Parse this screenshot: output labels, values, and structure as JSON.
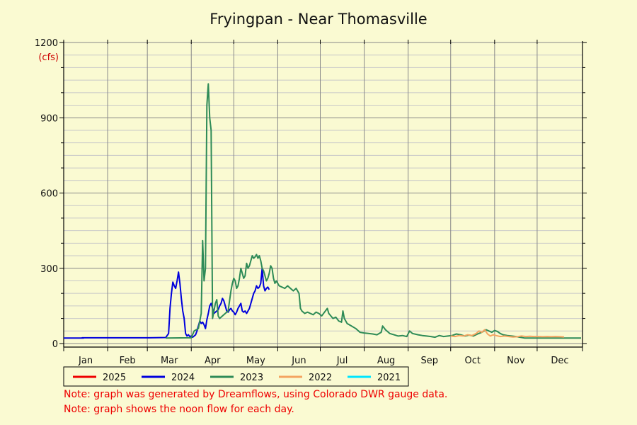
{
  "chart_data": {
    "type": "line",
    "title": "Fryingpan - Near Thomasville",
    "ylabel": "(cfs)",
    "xlabel": "",
    "ylim": [
      0,
      1200
    ],
    "y_ticks": [
      0,
      300,
      600,
      900,
      1200
    ],
    "x_unit": "day of year",
    "xlim": [
      0,
      366
    ],
    "months": [
      {
        "label": "Jan",
        "start": 0
      },
      {
        "label": "Feb",
        "start": 31
      },
      {
        "label": "Mar",
        "start": 59
      },
      {
        "label": "Apr",
        "start": 90
      },
      {
        "label": "May",
        "start": 120
      },
      {
        "label": "Jun",
        "start": 151
      },
      {
        "label": "Jul",
        "start": 181
      },
      {
        "label": "Aug",
        "start": 212
      },
      {
        "label": "Sep",
        "start": 243
      },
      {
        "label": "Oct",
        "start": 273
      },
      {
        "label": "Nov",
        "start": 304
      },
      {
        "label": "Dec",
        "start": 334
      }
    ],
    "grid": true,
    "legend_position": "bottom",
    "series": [
      {
        "name": "2025",
        "color": "#ee0000",
        "points": []
      },
      {
        "name": "2024",
        "color": "#0000dd",
        "points": [
          [
            0,
            22
          ],
          [
            14,
            22
          ],
          [
            13,
            23
          ],
          [
            30,
            23
          ],
          [
            45,
            23
          ],
          [
            60,
            23
          ],
          [
            72,
            24
          ],
          [
            74,
            40
          ],
          [
            75,
            140
          ],
          [
            76,
            200
          ],
          [
            77,
            245
          ],
          [
            78,
            230
          ],
          [
            79,
            220
          ],
          [
            80,
            250
          ],
          [
            81,
            285
          ],
          [
            82,
            240
          ],
          [
            83,
            180
          ],
          [
            84,
            130
          ],
          [
            85,
            100
          ],
          [
            86,
            40
          ],
          [
            87,
            30
          ],
          [
            88,
            35
          ],
          [
            89,
            28
          ],
          [
            90,
            30
          ],
          [
            91,
            25
          ],
          [
            92,
            30
          ],
          [
            93,
            35
          ],
          [
            94,
            50
          ],
          [
            95,
            70
          ],
          [
            96,
            90
          ],
          [
            97,
            80
          ],
          [
            98,
            85
          ],
          [
            99,
            75
          ],
          [
            100,
            60
          ],
          [
            101,
            95
          ],
          [
            102,
            120
          ],
          [
            103,
            150
          ],
          [
            104,
            160
          ],
          [
            105,
            140
          ],
          [
            106,
            120
          ],
          [
            107,
            125
          ],
          [
            108,
            130
          ],
          [
            109,
            135
          ],
          [
            110,
            150
          ],
          [
            111,
            160
          ],
          [
            112,
            180
          ],
          [
            113,
            170
          ],
          [
            114,
            150
          ],
          [
            115,
            130
          ],
          [
            116,
            125
          ],
          [
            117,
            135
          ],
          [
            118,
            140
          ],
          [
            119,
            130
          ],
          [
            120,
            125
          ],
          [
            121,
            115
          ],
          [
            122,
            125
          ],
          [
            123,
            140
          ],
          [
            124,
            150
          ],
          [
            125,
            160
          ],
          [
            126,
            130
          ],
          [
            127,
            125
          ],
          [
            128,
            130
          ],
          [
            129,
            120
          ],
          [
            130,
            130
          ],
          [
            131,
            140
          ],
          [
            132,
            160
          ],
          [
            133,
            180
          ],
          [
            134,
            200
          ],
          [
            135,
            210
          ],
          [
            136,
            230
          ],
          [
            137,
            220
          ],
          [
            138,
            225
          ],
          [
            139,
            240
          ],
          [
            140,
            300
          ],
          [
            141,
            230
          ],
          [
            142,
            210
          ],
          [
            143,
            220
          ],
          [
            144,
            225
          ],
          [
            145,
            215
          ]
        ]
      },
      {
        "name": "2023",
        "color": "#2e8b57",
        "points": [
          [
            72,
            22
          ],
          [
            90,
            23
          ],
          [
            92,
            50
          ],
          [
            95,
            60
          ],
          [
            97,
            120
          ],
          [
            98,
            410
          ],
          [
            99,
            250
          ],
          [
            100,
            300
          ],
          [
            101,
            950
          ],
          [
            102,
            1035
          ],
          [
            103,
            900
          ],
          [
            104,
            850
          ],
          [
            105,
            100
          ],
          [
            106,
            130
          ],
          [
            107,
            160
          ],
          [
            108,
            175
          ],
          [
            109,
            110
          ],
          [
            110,
            100
          ],
          [
            112,
            110
          ],
          [
            114,
            120
          ],
          [
            116,
            130
          ],
          [
            117,
            170
          ],
          [
            118,
            210
          ],
          [
            119,
            240
          ],
          [
            120,
            260
          ],
          [
            121,
            250
          ],
          [
            122,
            220
          ],
          [
            123,
            230
          ],
          [
            124,
            260
          ],
          [
            125,
            300
          ],
          [
            126,
            280
          ],
          [
            127,
            260
          ],
          [
            128,
            270
          ],
          [
            129,
            320
          ],
          [
            130,
            300
          ],
          [
            131,
            310
          ],
          [
            132,
            330
          ],
          [
            133,
            350
          ],
          [
            134,
            340
          ],
          [
            135,
            345
          ],
          [
            136,
            355
          ],
          [
            137,
            340
          ],
          [
            138,
            350
          ],
          [
            139,
            330
          ],
          [
            140,
            300
          ],
          [
            141,
            290
          ],
          [
            142,
            270
          ],
          [
            143,
            250
          ],
          [
            144,
            260
          ],
          [
            145,
            280
          ],
          [
            146,
            310
          ],
          [
            147,
            300
          ],
          [
            148,
            260
          ],
          [
            149,
            240
          ],
          [
            150,
            250
          ],
          [
            151,
            240
          ],
          [
            152,
            230
          ],
          [
            154,
            225
          ],
          [
            156,
            220
          ],
          [
            158,
            230
          ],
          [
            160,
            220
          ],
          [
            162,
            210
          ],
          [
            164,
            220
          ],
          [
            166,
            200
          ],
          [
            167,
            140
          ],
          [
            168,
            130
          ],
          [
            170,
            120
          ],
          [
            172,
            125
          ],
          [
            174,
            120
          ],
          [
            176,
            115
          ],
          [
            178,
            125
          ],
          [
            180,
            120
          ],
          [
            182,
            110
          ],
          [
            184,
            125
          ],
          [
            186,
            140
          ],
          [
            187,
            120
          ],
          [
            190,
            100
          ],
          [
            192,
            105
          ],
          [
            194,
            90
          ],
          [
            196,
            85
          ],
          [
            197,
            130
          ],
          [
            198,
            100
          ],
          [
            200,
            80
          ],
          [
            203,
            70
          ],
          [
            206,
            60
          ],
          [
            209,
            45
          ],
          [
            212,
            42
          ],
          [
            215,
            40
          ],
          [
            218,
            38
          ],
          [
            221,
            35
          ],
          [
            224,
            45
          ],
          [
            225,
            70
          ],
          [
            227,
            55
          ],
          [
            230,
            40
          ],
          [
            233,
            35
          ],
          [
            236,
            30
          ],
          [
            239,
            32
          ],
          [
            242,
            28
          ],
          [
            244,
            50
          ],
          [
            246,
            40
          ],
          [
            250,
            35
          ],
          [
            253,
            32
          ],
          [
            256,
            30
          ],
          [
            259,
            28
          ],
          [
            262,
            25
          ],
          [
            265,
            32
          ],
          [
            268,
            28
          ],
          [
            271,
            30
          ],
          [
            274,
            32
          ],
          [
            277,
            38
          ],
          [
            280,
            35
          ],
          [
            283,
            30
          ],
          [
            286,
            34
          ],
          [
            289,
            30
          ],
          [
            292,
            38
          ],
          [
            295,
            45
          ],
          [
            298,
            55
          ],
          [
            300,
            50
          ],
          [
            302,
            45
          ],
          [
            304,
            52
          ],
          [
            306,
            48
          ],
          [
            308,
            40
          ],
          [
            310,
            35
          ],
          [
            313,
            32
          ],
          [
            316,
            30
          ],
          [
            319,
            28
          ],
          [
            322,
            25
          ],
          [
            325,
            22
          ],
          [
            330,
            22
          ],
          [
            340,
            22
          ],
          [
            350,
            22
          ],
          [
            360,
            22
          ],
          [
            365,
            22
          ]
        ]
      },
      {
        "name": "2022",
        "color": "#f4a460",
        "points": [
          [
            273,
            30
          ],
          [
            276,
            28
          ],
          [
            279,
            32
          ],
          [
            282,
            30
          ],
          [
            285,
            35
          ],
          [
            288,
            32
          ],
          [
            291,
            40
          ],
          [
            293,
            50
          ],
          [
            295,
            45
          ],
          [
            297,
            55
          ],
          [
            299,
            38
          ],
          [
            301,
            30
          ],
          [
            303,
            35
          ],
          [
            305,
            32
          ],
          [
            308,
            28
          ],
          [
            311,
            30
          ],
          [
            314,
            28
          ],
          [
            317,
            26
          ],
          [
            320,
            27
          ],
          [
            323,
            30
          ],
          [
            326,
            28
          ],
          [
            329,
            29
          ],
          [
            332,
            28
          ],
          [
            335,
            28
          ],
          [
            338,
            27
          ],
          [
            341,
            28
          ],
          [
            344,
            27
          ],
          [
            347,
            28
          ],
          [
            350,
            27
          ],
          [
            353,
            26
          ]
        ]
      },
      {
        "name": "2021",
        "color": "#00e5ff",
        "points": []
      }
    ]
  },
  "notes": [
    "Note: graph was generated by Dreamflows, using Colorado DWR gauge data.",
    "Note: graph shows the noon flow for each day."
  ]
}
